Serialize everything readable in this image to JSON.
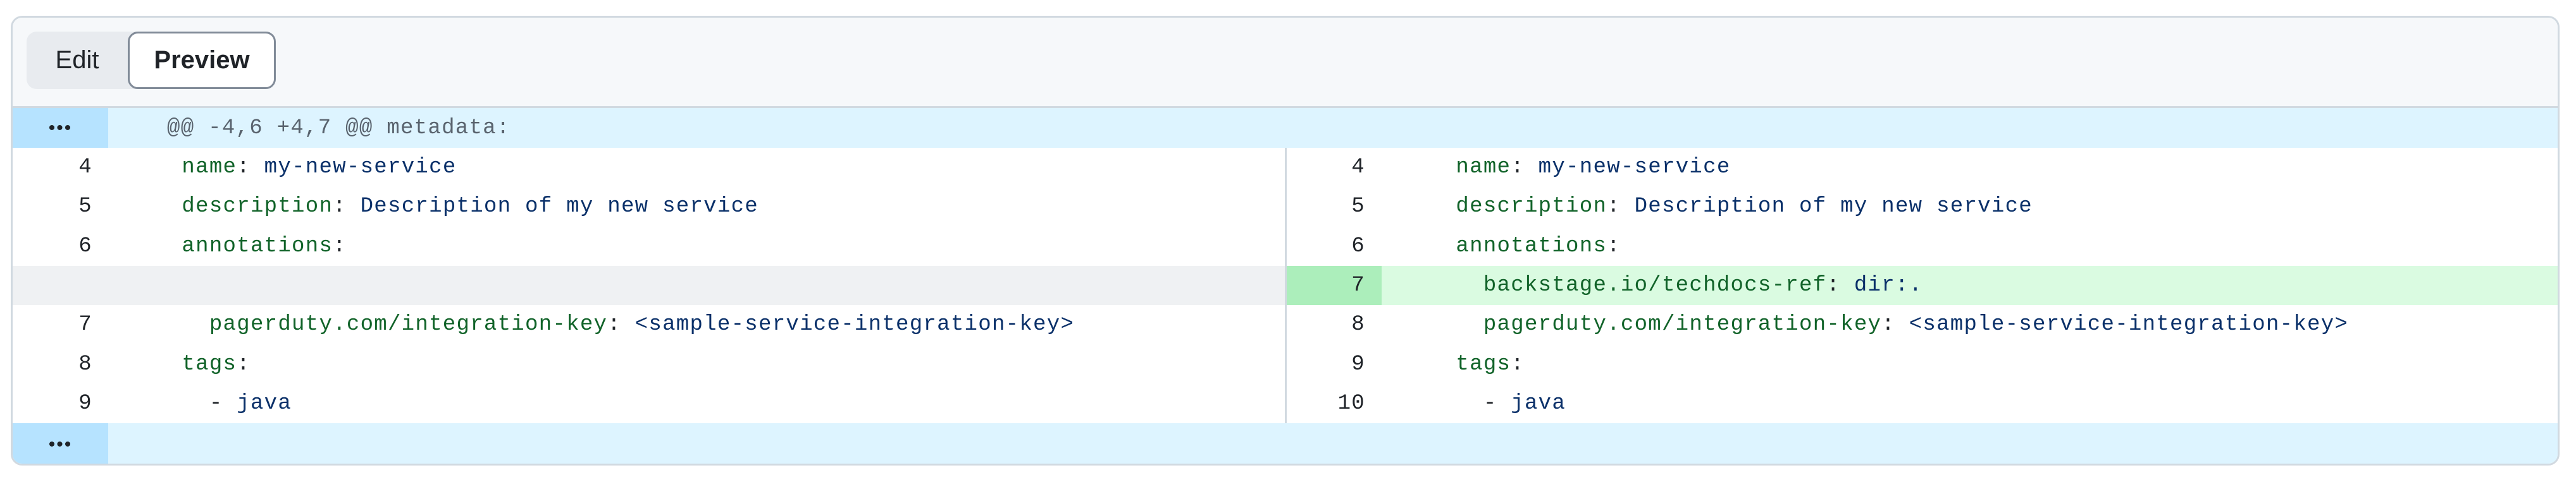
{
  "tabs": {
    "edit": "Edit",
    "preview": "Preview",
    "active": "preview"
  },
  "expand_icon": "•••",
  "hunk_header": "@@ -4,6 +4,7 @@ metadata:",
  "colors": {
    "key": "#116329",
    "value": "#0a3069",
    "added_bg": "#dafbe1",
    "added_gutter": "#aceebb",
    "hunk_bg": "#ddf4ff",
    "hunk_gutter": "#b6e3ff"
  },
  "left_rows": [
    {
      "num": "4",
      "indent": "  ",
      "key": "name",
      "sep": ": ",
      "value": "my-new-service"
    },
    {
      "num": "5",
      "indent": "  ",
      "key": "description",
      "sep": ": ",
      "value": "Description of my new service"
    },
    {
      "num": "6",
      "indent": "  ",
      "key": "annotations",
      "sep": ":",
      "value": ""
    },
    {
      "type": "empty"
    },
    {
      "num": "7",
      "indent": "    ",
      "key": "pagerduty.com/integration-key",
      "sep": ": ",
      "value": "<sample-service-integration-key>"
    },
    {
      "num": "8",
      "indent": "  ",
      "key": "tags",
      "sep": ":",
      "value": ""
    },
    {
      "num": "9",
      "indent": "    ",
      "key": "",
      "sep": "- ",
      "value": "java"
    }
  ],
  "right_rows": [
    {
      "num": "4",
      "indent": "  ",
      "key": "name",
      "sep": ": ",
      "value": "my-new-service"
    },
    {
      "num": "5",
      "indent": "  ",
      "key": "description",
      "sep": ": ",
      "value": "Description of my new service"
    },
    {
      "num": "6",
      "indent": "  ",
      "key": "annotations",
      "sep": ":",
      "value": ""
    },
    {
      "num": "7",
      "type": "add",
      "indent": "    ",
      "key": "backstage.io/techdocs-ref",
      "sep": ": ",
      "value": "dir:."
    },
    {
      "num": "8",
      "indent": "    ",
      "key": "pagerduty.com/integration-key",
      "sep": ": ",
      "value": "<sample-service-integration-key>"
    },
    {
      "num": "9",
      "indent": "  ",
      "key": "tags",
      "sep": ":",
      "value": ""
    },
    {
      "num": "10",
      "indent": "    ",
      "key": "",
      "sep": "- ",
      "value": "java"
    }
  ]
}
